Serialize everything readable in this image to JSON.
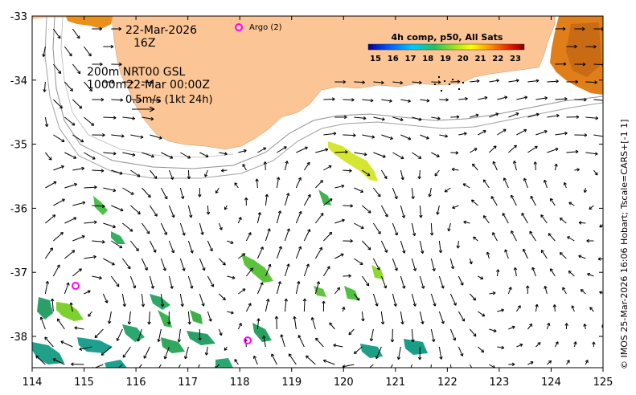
{
  "map": {
    "date": "22-Mar-2026",
    "time": "16Z",
    "depth_info_1": "200m  NRT00 GSL",
    "depth_info_2": "1000m22-Mar 00:00Z",
    "scale_label": "0.5m/s (1kt 24h)",
    "argo_label": "Argo (2)",
    "x_ticks": [
      "114",
      "115",
      "116",
      "117",
      "118",
      "119",
      "120",
      "121",
      "122",
      "123",
      "124",
      "125"
    ],
    "y_ticks": [
      "-33",
      "-34",
      "-35",
      "-36",
      "-37",
      "-38"
    ],
    "colorbar": {
      "title": "4h comp, p50, All Sats",
      "ticks": [
        "15",
        "16",
        "17",
        "18",
        "19",
        "20",
        "21",
        "22",
        "23"
      ]
    },
    "credit": "© IMOS 25-Mar-2026 16:06 Hobart; Tscale=CARS+[-1 1]",
    "colors": {
      "land": "#fcc596",
      "argo": "#ff00ff",
      "sst_cool": "#1fa58a",
      "sst_warm": "#c7e83a"
    }
  }
}
